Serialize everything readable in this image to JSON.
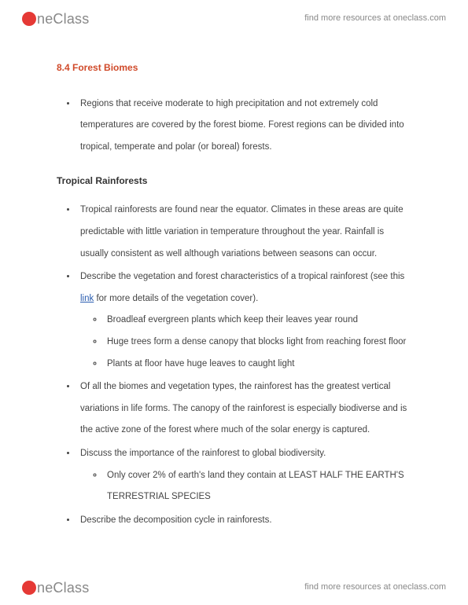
{
  "brand": {
    "name_rest": "neClass",
    "tagline": "find more resources at oneclass.com"
  },
  "doc": {
    "section_title": "8.4 Forest Biomes",
    "intro_bullet": "Regions that receive moderate to high precipitation and not extremely cold temperatures are covered by the forest biome. Forest regions can be divided into tropical, temperate and polar (or boreal) forests.",
    "subheading": "Tropical Rainforests",
    "b1": "Tropical rainforests are found near the equator. Climates in these areas are quite predictable with little variation in temperature throughout the year. Rainfall is usually consistent as well although variations between seasons can occur.",
    "b2_pre": "Describe the vegetation and forest characteristics of a tropical rainforest (see this ",
    "b2_link": "link",
    "b2_post": " for more details of the vegetation cover).",
    "b2_sub1": "Broadleaf evergreen plants which keep their leaves year round",
    "b2_sub2": "Huge trees form a dense canopy that blocks light from reaching forest floor",
    "b2_sub3": "Plants at floor have huge leaves to caught light",
    "b3": "Of all the biomes and vegetation types, the rainforest has the greatest vertical variations in life forms. The canopy of the rainforest is especially biodiverse and is the active zone of the forest where much of the solar energy is captured.",
    "b4": "Discuss the importance of the rainforest to global biodiversity.",
    "b4_sub1": "Only cover 2% of earth's land they contain at LEAST HALF THE EARTH'S TERRESTRIAL SPECIES",
    "b5": "Describe the decomposition cycle in rainforests."
  },
  "colors": {
    "title_color": "#d04a2a",
    "link_color": "#2a5db0",
    "text_color": "#444444",
    "brand_red": "#e53935",
    "brand_gray": "#888888"
  }
}
